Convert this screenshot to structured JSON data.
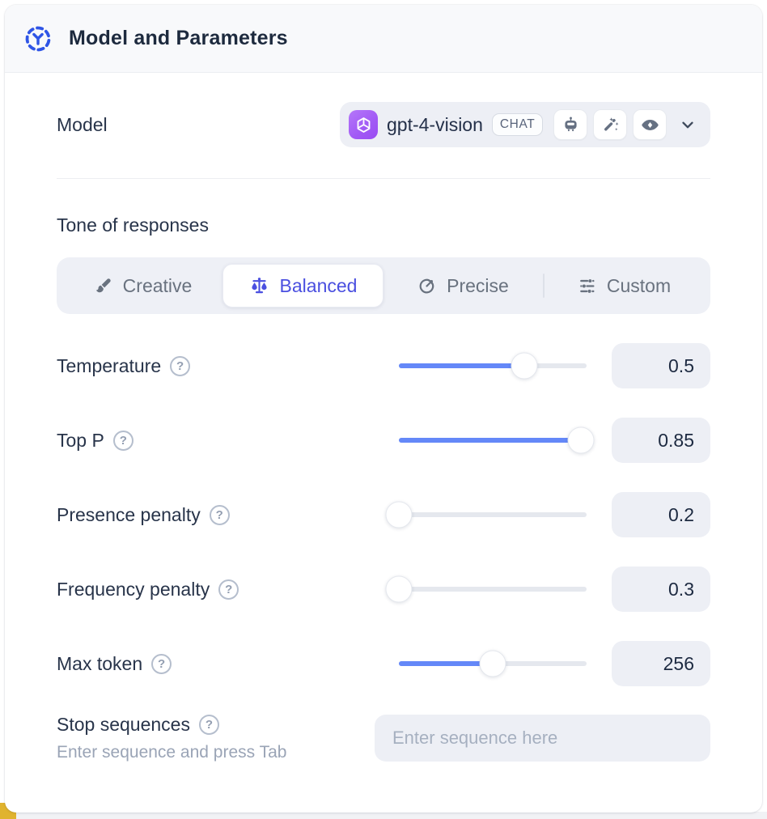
{
  "header": {
    "title": "Model and Parameters",
    "icon": "model-node-icon"
  },
  "model": {
    "label": "Model",
    "name": "gpt-4-vision",
    "type_badge": "CHAT",
    "provider_icon": "openai-logo",
    "capability_icons": [
      "robot-icon",
      "magic-wand-icon",
      "vision-eye-icon"
    ]
  },
  "tone": {
    "heading": "Tone of responses",
    "options": [
      {
        "label": "Creative",
        "icon": "paintbrush-icon",
        "selected": false
      },
      {
        "label": "Balanced",
        "icon": "balance-scale-icon",
        "selected": true
      },
      {
        "label": "Precise",
        "icon": "target-icon",
        "selected": false
      },
      {
        "label": "Custom",
        "icon": "sliders-icon",
        "selected": false
      }
    ]
  },
  "parameters": [
    {
      "label": "Temperature",
      "value": "0.5",
      "slider_pct": 67
    },
    {
      "label": "Top P",
      "value": "0.85",
      "slider_pct": 97
    },
    {
      "label": "Presence penalty",
      "value": "0.2",
      "slider_pct": 0
    },
    {
      "label": "Frequency penalty",
      "value": "0.3",
      "slider_pct": 0
    },
    {
      "label": "Max token",
      "value": "256",
      "slider_pct": 50
    }
  ],
  "stop_sequences": {
    "label": "Stop sequences",
    "helper": "Enter sequence and press Tab",
    "placeholder": "Enter sequence here"
  },
  "colors": {
    "accent_blue": "#2f55e6",
    "selected_tab_blue": "#4a4fe0",
    "slider_fill_blue": "#6488f8",
    "provider_purple": "#a159f5",
    "corner_gold": "#e0b32e",
    "field_bg": "#edeff5",
    "header_bg": "#f8f9fb"
  }
}
